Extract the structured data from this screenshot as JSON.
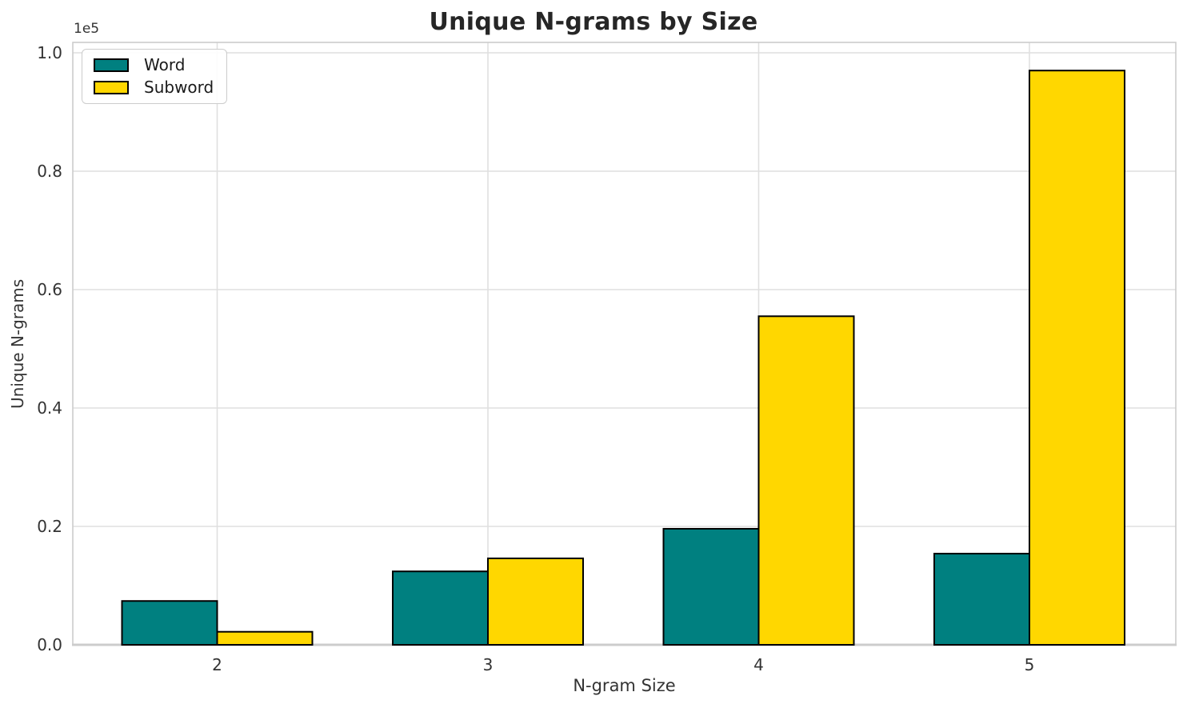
{
  "chart_data": {
    "type": "bar",
    "title": "Unique N-grams by Size",
    "xlabel": "N-gram Size",
    "ylabel": "Unique N-grams",
    "y_offset_label": "1e5",
    "categories": [
      "2",
      "3",
      "4",
      "5"
    ],
    "series": [
      {
        "name": "Word",
        "color": "#008080",
        "values": [
          7400,
          12400,
          19600,
          15400
        ]
      },
      {
        "name": "Subword",
        "color": "#FFD700",
        "values": [
          2200,
          14600,
          55500,
          97000
        ]
      }
    ],
    "ylim": [
      0,
      100000
    ],
    "yticks": [
      0,
      20000,
      40000,
      60000,
      80000,
      100000
    ],
    "ytick_labels": [
      "0.0",
      "0.2",
      "0.4",
      "0.6",
      "0.8",
      "1.0"
    ],
    "bar_edge_color": "#000000",
    "grid": true,
    "grid_color": "#dfdfdf",
    "spine_color": "#cccccc",
    "legend_position": "upper-left"
  }
}
